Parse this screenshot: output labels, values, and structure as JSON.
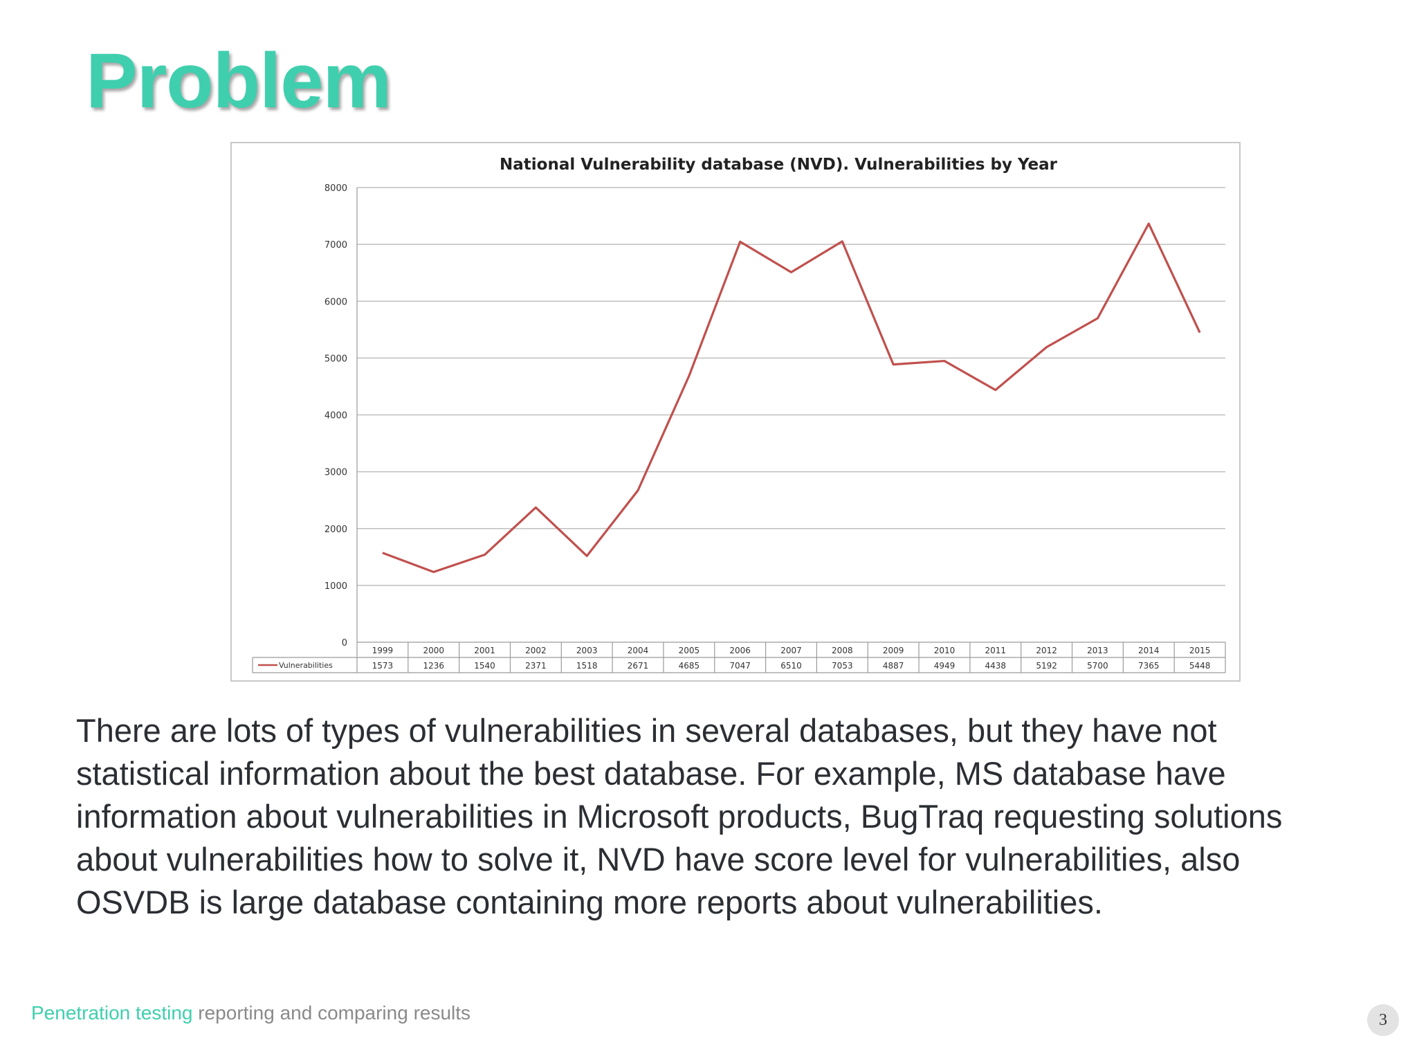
{
  "slide": {
    "title": "Problem",
    "body": "There are lots of types of vulnerabilities in several databases, but they have not statistical information about the best database. For example, MS database have information about vulnerabilities in Microsoft products, BugTraq requesting solutions about vulnerabilities how to solve it, NVD have score level for vulnerabilities, also OSVDB is large database containing more reports about vulnerabilities.",
    "footer_accent": "Penetration testing",
    "footer_rest": " reporting and comparing results",
    "page_number": "3"
  },
  "colors": {
    "title": "#3fcfae",
    "series_line": "#c0504d",
    "gridline": "#bfbfbf"
  },
  "chart_data": {
    "type": "line",
    "title": "National Vulnerability database (NVD). Vulnerabilities by Year",
    "xlabel": "",
    "ylabel": "",
    "ylim": [
      0,
      8000
    ],
    "yticks": [
      0,
      1000,
      2000,
      3000,
      4000,
      5000,
      6000,
      7000,
      8000
    ],
    "grid": true,
    "legend": "data-table-left",
    "categories": [
      "1999",
      "2000",
      "2001",
      "2002",
      "2003",
      "2004",
      "2005",
      "2006",
      "2007",
      "2008",
      "2009",
      "2010",
      "2011",
      "2012",
      "2013",
      "2014",
      "2015"
    ],
    "series": [
      {
        "name": "Vulnerabilities",
        "values": [
          1573,
          1236,
          1540,
          2371,
          1518,
          2671,
          4685,
          7047,
          6510,
          7053,
          4887,
          4949,
          4438,
          5192,
          5700,
          7365,
          5448
        ]
      }
    ]
  }
}
